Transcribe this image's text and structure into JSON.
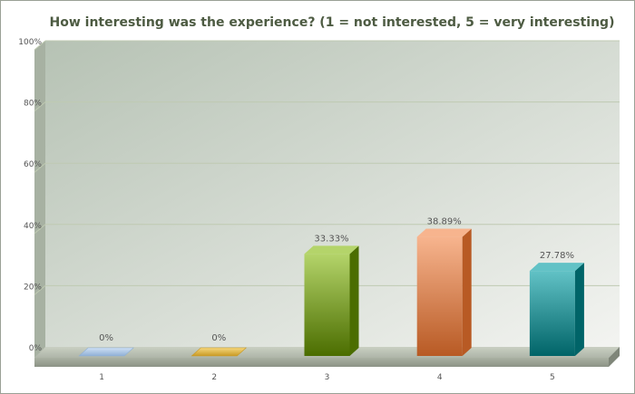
{
  "chart_data": {
    "type": "bar",
    "title": "How interesting was the experience? (1 = not interested, 5 = very interesting)",
    "xlabel": "",
    "ylabel": "",
    "ylim": [
      0,
      100
    ],
    "y_ticks": [
      "0%",
      "20%",
      "40%",
      "60%",
      "80%",
      "100%"
    ],
    "y_tick_values": [
      0,
      20,
      40,
      60,
      80,
      100
    ],
    "categories": [
      "1",
      "2",
      "3",
      "4",
      "5"
    ],
    "values": [
      0,
      0,
      33.33,
      38.89,
      27.78
    ],
    "value_labels": [
      "0%",
      "0%",
      "33.33%",
      "38.89%",
      "27.78%"
    ],
    "grid": true,
    "legend": "none",
    "colors": {
      "bar_light": [
        "#cfe0f4",
        "#f6d77e",
        "#b4d46a",
        "#f7b48e",
        "#62c2c6"
      ],
      "bar_dark": [
        "#8fb0d6",
        "#c99a24",
        "#4b6d00",
        "#b85a24",
        "#006468"
      ],
      "title": "#4d5b42",
      "grid": "#bfcab2",
      "plot_bg_from": "#b6c2b4",
      "plot_bg_to": "#f3f4f1",
      "axis_text": "#555555"
    }
  }
}
